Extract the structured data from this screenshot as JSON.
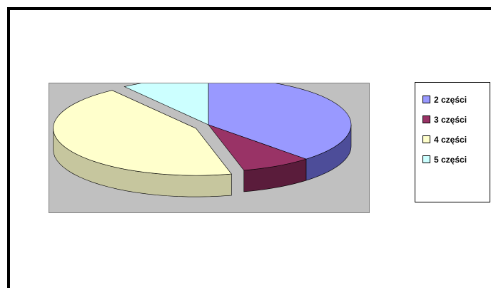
{
  "chart_data": {
    "type": "pie",
    "title": "",
    "style": "3d-exploded",
    "legend_position": "right",
    "categories": [
      "2 części",
      "3 części",
      "4 części",
      "5 części"
    ],
    "values": [
      38,
      8,
      44,
      10
    ],
    "colors": [
      "#9999ff",
      "#993366",
      "#ffffcc",
      "#ccffff"
    ],
    "side_colors": [
      "#4d4d99",
      "#5a1c3b",
      "#c6c69e",
      "#8fb3b3"
    ],
    "plot_background": "#c0c0c0"
  }
}
